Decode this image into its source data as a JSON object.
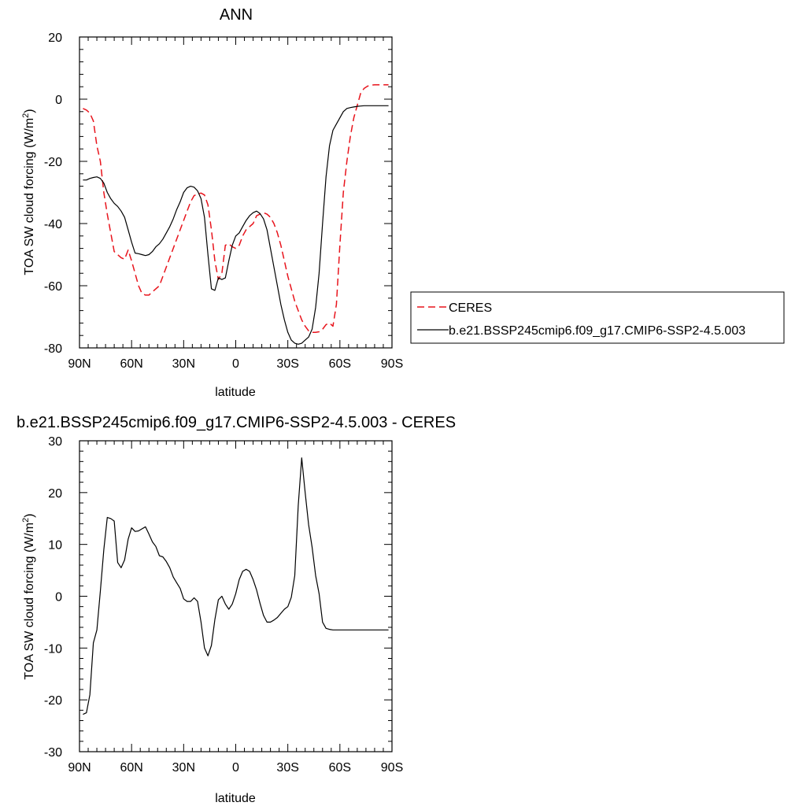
{
  "chart_data": [
    {
      "type": "line",
      "title": "ANN",
      "xlabel": "latitude",
      "ylabel": "TOA SW cloud forcing (W/m",
      "ylabel_sup": "2",
      "ylabel_close": ")",
      "ylim": [
        -80,
        20
      ],
      "yticks": [
        -80,
        -60,
        -40,
        -20,
        0,
        20
      ],
      "xlim": [
        90,
        -90
      ],
      "xticks": [
        90,
        60,
        30,
        0,
        -30,
        -60,
        -90
      ],
      "xticklabels": [
        "90N",
        "60N",
        "30N",
        "0",
        "30S",
        "60S",
        "90S"
      ],
      "grid": false,
      "legend_position": "right",
      "series": [
        {
          "name": "CERES",
          "color": "#e8141c",
          "dash": "dashed",
          "x": [
            88,
            86,
            84,
            82,
            80,
            78,
            76,
            74,
            72,
            70,
            68,
            66,
            64,
            62,
            60,
            58,
            56,
            54,
            52,
            50,
            48,
            46,
            44,
            42,
            40,
            38,
            36,
            34,
            32,
            30,
            28,
            26,
            24,
            22,
            20,
            18,
            16,
            14,
            12,
            10,
            8,
            6,
            4,
            2,
            0,
            -2,
            -4,
            -6,
            -8,
            -10,
            -12,
            -14,
            -16,
            -18,
            -20,
            -22,
            -24,
            -26,
            -28,
            -30,
            -32,
            -34,
            -36,
            -38,
            -40,
            -42,
            -44,
            -46,
            -48,
            -50,
            -52,
            -54,
            -56,
            -58,
            -60,
            -62,
            -64,
            -66,
            -68,
            -70,
            -72,
            -74,
            -76,
            -78,
            -80,
            -82,
            -84,
            -86,
            -88
          ],
          "y": [
            -3,
            -3.5,
            -4.5,
            -7,
            -15,
            -20,
            -30,
            -37,
            -43,
            -49,
            -50,
            -51,
            -51.5,
            -48.5,
            -52,
            -56,
            -60,
            -62.5,
            -63,
            -63,
            -62,
            -61,
            -60,
            -57,
            -54,
            -51,
            -48,
            -45,
            -42,
            -39,
            -36,
            -33,
            -31,
            -30.5,
            -30.2,
            -30.8,
            -34,
            -42,
            -52,
            -58,
            -56,
            -47,
            -46.5,
            -47.5,
            -48,
            -47,
            -44,
            -42,
            -41,
            -40,
            -37.5,
            -37,
            -36.5,
            -37,
            -38,
            -40,
            -43,
            -47,
            -52,
            -57,
            -61,
            -65,
            -68,
            -71,
            -73,
            -74.5,
            -75,
            -75,
            -74.8,
            -74,
            -72.5,
            -72,
            -73,
            -66,
            -47,
            -30,
            -20,
            -12,
            -6,
            -2,
            2,
            3.5,
            4.2,
            4.5,
            4.6,
            4.6,
            4.6,
            4.6,
            4.6
          ],
          "x_partial_note": ""
        },
        {
          "name": "b.e21.BSSP245cmip6.f09_g17.CMIP6-SSP2-4.5.003",
          "color": "#000000",
          "dash": "solid",
          "x": [
            88,
            86,
            84,
            82,
            80,
            78,
            76,
            74,
            72,
            70,
            68,
            66,
            64,
            62,
            60,
            58,
            56,
            54,
            52,
            50,
            48,
            46,
            44,
            42,
            40,
            38,
            36,
            34,
            32,
            30,
            28,
            26,
            24,
            22,
            20,
            18,
            16,
            14,
            12,
            10,
            8,
            6,
            4,
            2,
            0,
            -2,
            -4,
            -6,
            -8,
            -10,
            -12,
            -14,
            -16,
            -18,
            -20,
            -22,
            -24,
            -26,
            -28,
            -30,
            -32,
            -34,
            -36,
            -38,
            -40,
            -42,
            -44,
            -46,
            -48,
            -50,
            -52,
            -54,
            -56,
            -58,
            -60,
            -62,
            -64,
            -66,
            -68,
            -70,
            -72,
            -74,
            -76,
            -78,
            -80,
            -82,
            -84,
            -86,
            -88
          ],
          "y": [
            -26,
            -26,
            -25.5,
            -25.2,
            -25,
            -25.5,
            -27,
            -30,
            -32,
            -33.5,
            -34.5,
            -36,
            -38,
            -42,
            -46,
            -49.5,
            -49.7,
            -50,
            -50.3,
            -50,
            -49,
            -47.5,
            -46.5,
            -45,
            -43,
            -41,
            -38.5,
            -35.5,
            -33,
            -30,
            -28.5,
            -28,
            -28.3,
            -29.5,
            -32,
            -38,
            -50,
            -61,
            -61.5,
            -57.5,
            -58,
            -57.5,
            -52,
            -47,
            -44,
            -43,
            -41,
            -39,
            -37.5,
            -36.5,
            -36,
            -36.8,
            -38.5,
            -42,
            -48,
            -54,
            -60,
            -66,
            -71,
            -75,
            -77.5,
            -78.5,
            -78.8,
            -78.5,
            -77.5,
            -76.5,
            -74,
            -67,
            -56,
            -40,
            -25,
            -15,
            -10,
            -8,
            -6,
            -4,
            -3,
            -2.7,
            -2.5,
            -2.3,
            -2.2,
            -2.1,
            -2.1,
            -2.1,
            -2.1,
            -2.1,
            -2.1,
            -2.1,
            -2.1
          ]
        }
      ]
    },
    {
      "type": "line",
      "title": "b.e21.BSSP245cmip6.f09_g17.CMIP6-SSP2-4.5.003 - CERES",
      "xlabel": "latitude",
      "ylabel": "TOA SW cloud forcing (W/m",
      "ylabel_sup": "2",
      "ylabel_close": ")",
      "ylim": [
        -30,
        30
      ],
      "yticks": [
        -30,
        -20,
        -10,
        0,
        10,
        20,
        30
      ],
      "xlim": [
        90,
        -90
      ],
      "xticks": [
        90,
        60,
        30,
        0,
        -30,
        -60,
        -90
      ],
      "xticklabels": [
        "90N",
        "60N",
        "30N",
        "0",
        "30S",
        "60S",
        "90S"
      ],
      "grid": false,
      "series": [
        {
          "color": "#000000",
          "dash": "solid",
          "x": [
            88,
            86,
            84,
            82,
            80,
            78,
            76,
            74,
            72,
            70,
            68,
            66,
            64,
            62,
            60,
            58,
            56,
            54,
            52,
            50,
            48,
            46,
            44,
            42,
            40,
            38,
            36,
            34,
            32,
            30,
            28,
            26,
            24,
            22,
            20,
            18,
            16,
            14,
            12,
            10,
            8,
            6,
            4,
            2,
            0,
            -2,
            -4,
            -6,
            -8,
            -10,
            -12,
            -14,
            -16,
            -18,
            -20,
            -22,
            -24,
            -26,
            -28,
            -30,
            -32,
            -34,
            -36,
            -38,
            -40,
            -42,
            -44,
            -46,
            -48,
            -50,
            -52,
            -54,
            -56,
            -58,
            -60,
            -62,
            -64,
            -66,
            -68,
            -70,
            -72,
            -74,
            -76,
            -78,
            -80,
            -82,
            -84,
            -86,
            -88
          ],
          "y": [
            -22.8,
            -22.5,
            -19,
            -9,
            -6.5,
            1,
            9,
            15.2,
            15,
            14.5,
            6.5,
            5.5,
            7,
            11,
            13.2,
            12.5,
            12.6,
            13,
            13.4,
            12,
            10.5,
            9.6,
            7.8,
            7.6,
            6.7,
            5.5,
            3.7,
            2.6,
            1.5,
            -0.5,
            -1,
            -1,
            -0.3,
            -1,
            -5,
            -10,
            -11.5,
            -9.5,
            -4.5,
            -0.7,
            0,
            -1.5,
            -2.5,
            -1.5,
            0.5,
            3.2,
            4.8,
            5.2,
            4.8,
            3.2,
            1.2,
            -1.4,
            -3.7,
            -5,
            -5,
            -4.6,
            -4.1,
            -3.3,
            -2.5,
            -2,
            -0.2,
            4,
            17.5,
            26.7,
            20,
            13.8,
            9.5,
            4,
            0.5,
            -5,
            -6.2,
            -6.4,
            -6.5,
            -6.5,
            -6.5,
            -6.5,
            -6.5,
            -6.5,
            -6.5,
            -6.5,
            -6.5,
            -6.5,
            -6.5,
            -6.5,
            -6.5,
            -6.5,
            -6.5,
            -6.5,
            -6.5
          ]
        }
      ]
    }
  ]
}
